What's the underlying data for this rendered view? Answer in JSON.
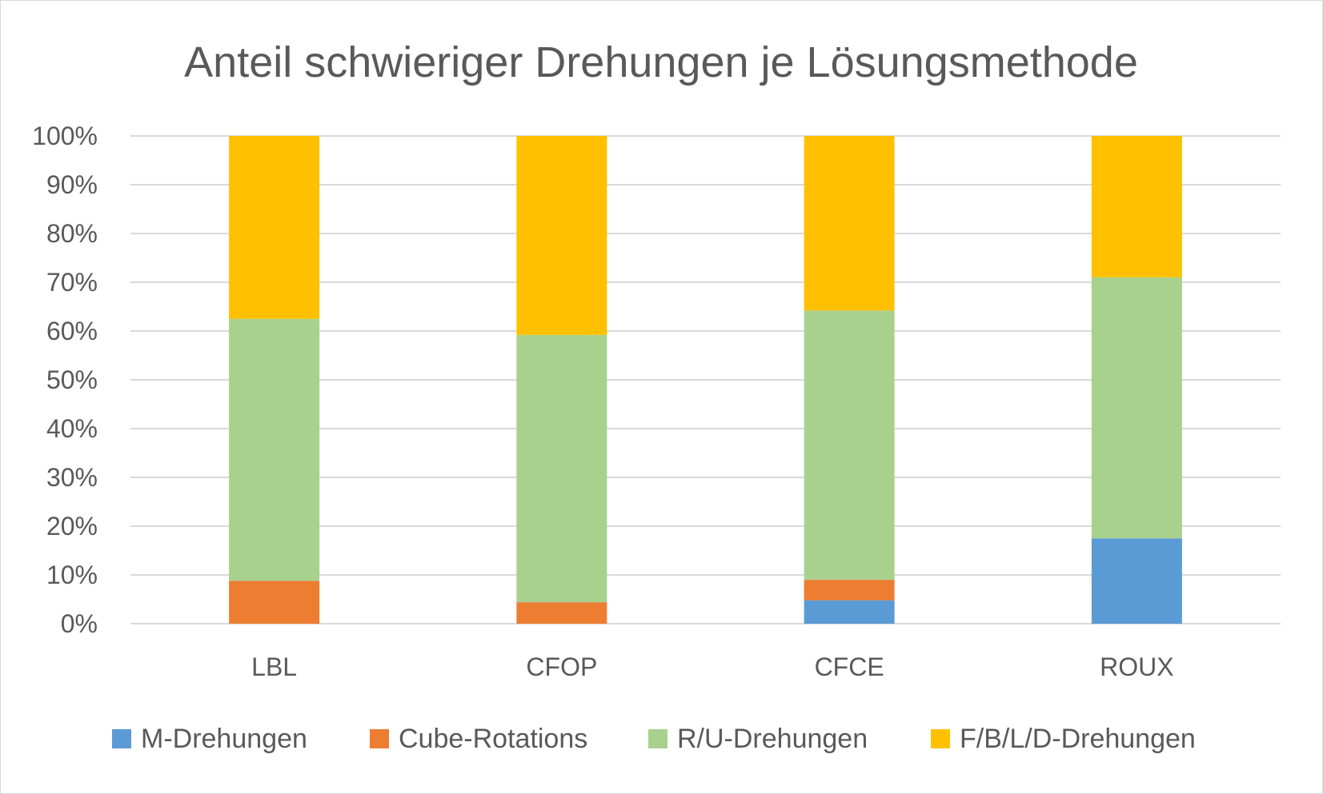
{
  "chart_data": {
    "type": "bar",
    "stacked": true,
    "percent": true,
    "title": "Anteil schwieriger Drehungen je Lösungsmethode",
    "categories": [
      "LBL",
      "CFOP",
      "CFCE",
      "ROUX"
    ],
    "series": [
      {
        "name": "M-Drehungen",
        "color": "#5b9bd5",
        "values": [
          0,
          0,
          4.8,
          17.5
        ]
      },
      {
        "name": "Cube-Rotations",
        "color": "#ed7d31",
        "values": [
          8.8,
          4.4,
          4.2,
          0
        ]
      },
      {
        "name": "R/U-Drehungen",
        "color": "#a9d18e",
        "values": [
          53.7,
          54.8,
          55.2,
          53.5
        ]
      },
      {
        "name": "F/B/L/D-Drehungen",
        "color": "#ffc000",
        "values": [
          37.5,
          40.8,
          35.8,
          29.0
        ]
      }
    ],
    "ylim": [
      0,
      100
    ],
    "y_ticks": [
      "0%",
      "10%",
      "20%",
      "30%",
      "40%",
      "50%",
      "60%",
      "70%",
      "80%",
      "90%",
      "100%"
    ],
    "grid": true,
    "legend_position": "bottom"
  }
}
